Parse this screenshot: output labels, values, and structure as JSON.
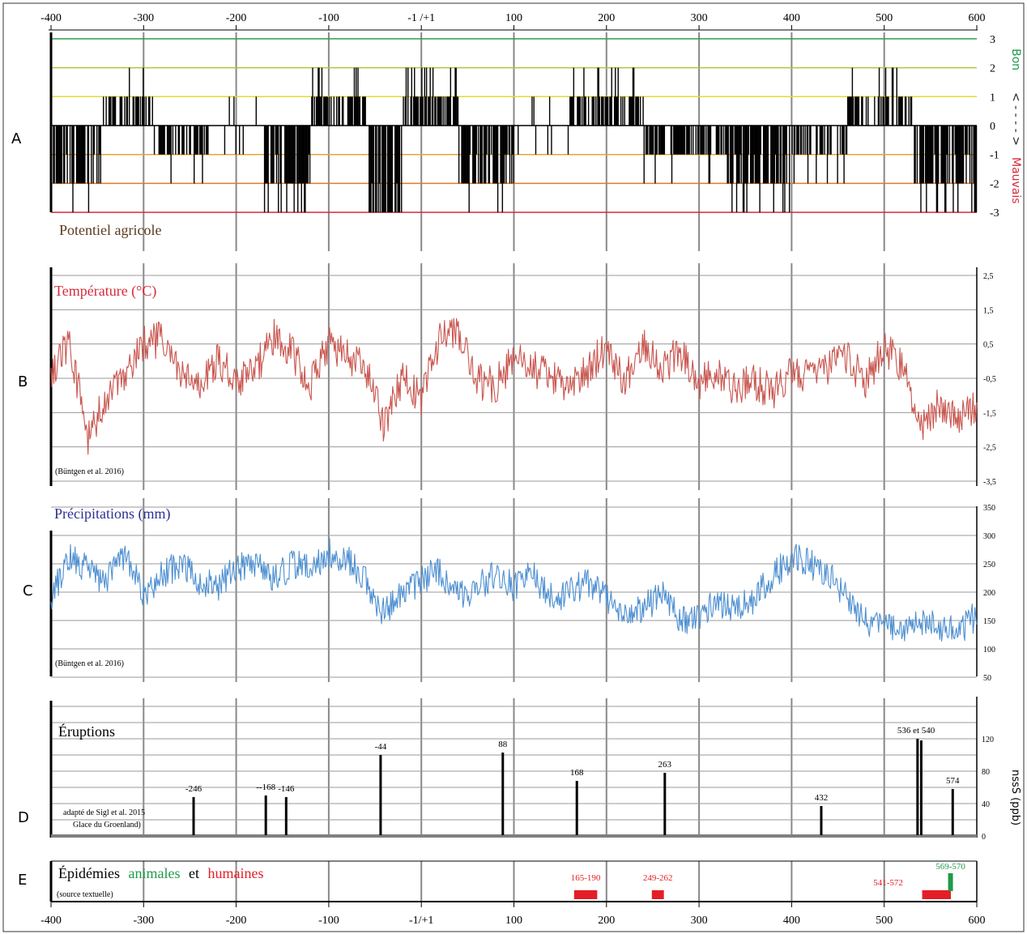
{
  "axis": {
    "xlim": [
      -400,
      600
    ],
    "top_ticks": [
      "-400",
      "-300",
      "-200",
      "-100",
      "-1 /+1",
      "100",
      "200",
      "300",
      "400",
      "500",
      "600"
    ],
    "bottom_ticks": [
      "-400",
      "-300",
      "-200",
      "-100",
      "-1/+1",
      "100",
      "200",
      "300",
      "400",
      "500",
      "600"
    ]
  },
  "panels": {
    "A": {
      "letter": "A",
      "title": "Potentiel agricole",
      "yticks": [
        "3",
        "2",
        "1",
        "0",
        "-1",
        "-2",
        "-3"
      ],
      "right_label_good": "Bon",
      "right_label_arrow": "< - - - - >",
      "right_label_bad": "Mauvais",
      "level_colors": [
        "#2e9e4b",
        "#a8c93a",
        "#e2d93a",
        "#000000",
        "#e8a33a",
        "#e07a2a",
        "#d62b3a"
      ]
    },
    "B": {
      "letter": "B",
      "title": "Température (°C)",
      "source": "(Büntgen et al. 2016)",
      "yticks": [
        "2,5",
        "1,5",
        "0,5",
        "-0,5",
        "-1,5",
        "-2,5",
        "-3,5"
      ],
      "color": "#c9564f"
    },
    "C": {
      "letter": "C",
      "title": "Précipitations (mm)",
      "source": "(Büntgen et al. 2016)",
      "yticks": [
        "350",
        "300",
        "250",
        "200",
        "150",
        "100",
        "50"
      ],
      "color": "#4d8fd1"
    },
    "D": {
      "letter": "D",
      "title": "Éruptions",
      "source_line1": "adapté de Sigl et al. 2015",
      "source_line2": "Glace du Groenland)",
      "ylabel": "nssS (ppb)",
      "yticks": [
        "120",
        "80",
        "40",
        "0"
      ]
    },
    "E": {
      "letter": "E",
      "title_prefix": "Épidémies",
      "title_green": "animales",
      "title_mid": "et",
      "title_red": "humaines",
      "source": "(source textuelle)"
    }
  },
  "chart_data": [
    {
      "type": "bar",
      "panel": "A",
      "title": "Potentiel agricole",
      "ylim": [
        -3,
        3
      ],
      "note": "annual agricultural potential index, integer levels -3 (Mauvais) to 3 (Bon)",
      "segments": [
        {
          "x0": -400,
          "x1": -345,
          "value": -2
        },
        {
          "x0": -345,
          "x1": -290,
          "value": 1
        },
        {
          "x0": -290,
          "x1": -230,
          "value": -1
        },
        {
          "x0": -230,
          "x1": -170,
          "value": 0
        },
        {
          "x0": -170,
          "x1": -120,
          "value": -2
        },
        {
          "x0": -120,
          "x1": -60,
          "value": 1
        },
        {
          "x0": -60,
          "x1": -20,
          "value": -3
        },
        {
          "x0": -20,
          "x1": 40,
          "value": 1
        },
        {
          "x0": 40,
          "x1": 100,
          "value": -2
        },
        {
          "x0": 100,
          "x1": 160,
          "value": 0
        },
        {
          "x0": 160,
          "x1": 240,
          "value": 1
        },
        {
          "x0": 240,
          "x1": 330,
          "value": -1
        },
        {
          "x0": 330,
          "x1": 400,
          "value": -2
        },
        {
          "x0": 400,
          "x1": 460,
          "value": -1
        },
        {
          "x0": 460,
          "x1": 530,
          "value": 1
        },
        {
          "x0": 530,
          "x1": 600,
          "value": -2
        }
      ]
    },
    {
      "type": "line",
      "panel": "B",
      "title": "Température (°C)",
      "ylim": [
        -3.5,
        2.5
      ],
      "x": [
        -400,
        -380,
        -360,
        -340,
        -320,
        -300,
        -280,
        -260,
        -240,
        -220,
        -200,
        -180,
        -160,
        -140,
        -120,
        -100,
        -80,
        -60,
        -40,
        -20,
        0,
        20,
        40,
        60,
        80,
        100,
        120,
        140,
        160,
        180,
        200,
        220,
        240,
        260,
        280,
        300,
        320,
        340,
        360,
        380,
        400,
        420,
        440,
        460,
        480,
        500,
        520,
        540,
        560,
        580,
        600
      ],
      "values": [
        -0.3,
        0.6,
        -2.3,
        -1.0,
        -0.6,
        0.6,
        0.6,
        -0.4,
        -0.8,
        0.1,
        -0.6,
        -0.3,
        0.7,
        0.3,
        -0.7,
        0.5,
        0.2,
        -0.3,
        -1.9,
        -0.4,
        -1.1,
        0.7,
        0.8,
        -0.6,
        -0.7,
        0.1,
        -0.2,
        -0.5,
        -0.8,
        -0.3,
        0.5,
        -0.6,
        0.6,
        -0.2,
        0.3,
        -0.6,
        -0.4,
        -0.8,
        -0.6,
        -0.9,
        -0.3,
        -0.4,
        -0.2,
        0.1,
        -0.6,
        0.4,
        -0.2,
        -1.9,
        -1.2,
        -1.6,
        -1.3
      ]
    },
    {
      "type": "line",
      "panel": "C",
      "title": "Précipitations (mm)",
      "ylim": [
        50,
        350
      ],
      "x": [
        -400,
        -380,
        -360,
        -340,
        -320,
        -300,
        -280,
        -260,
        -240,
        -220,
        -200,
        -180,
        -160,
        -140,
        -120,
        -100,
        -80,
        -60,
        -40,
        -20,
        0,
        20,
        40,
        60,
        80,
        100,
        120,
        140,
        160,
        180,
        200,
        220,
        240,
        260,
        280,
        300,
        320,
        340,
        360,
        380,
        400,
        420,
        440,
        460,
        480,
        500,
        520,
        540,
        560,
        580,
        600
      ],
      "values": [
        190,
        260,
        240,
        220,
        270,
        190,
        230,
        250,
        220,
        210,
        240,
        250,
        220,
        250,
        240,
        270,
        260,
        220,
        160,
        200,
        220,
        240,
        190,
        210,
        230,
        210,
        230,
        190,
        200,
        220,
        190,
        160,
        170,
        200,
        150,
        160,
        180,
        170,
        190,
        230,
        260,
        250,
        230,
        190,
        150,
        140,
        130,
        150,
        140,
        130,
        160
      ]
    },
    {
      "type": "bar",
      "panel": "D",
      "title": "Éruptions",
      "ylabel": "nssS (ppb)",
      "ylim": [
        0,
        160
      ],
      "x": [
        -246,
        -168,
        -146,
        -44,
        88,
        168,
        263,
        432,
        536,
        540,
        574
      ],
      "labels": [
        "-246",
        "--168",
        "-146",
        "-44",
        "88",
        "168",
        "263",
        "432",
        "536 et 540",
        "",
        "574"
      ],
      "values": [
        48,
        50,
        48,
        100,
        103,
        68,
        78,
        37,
        120,
        118,
        58
      ]
    },
    {
      "type": "bar",
      "panel": "E",
      "title": "Épidémies animales et humaines",
      "events": [
        {
          "label": "165-190",
          "start": 165,
          "end": 190,
          "kind": "humaines",
          "color": "#e41e26"
        },
        {
          "label": "249-262",
          "start": 249,
          "end": 262,
          "kind": "humaines",
          "color": "#e41e26"
        },
        {
          "label": "541-572",
          "start": 541,
          "end": 572,
          "kind": "humaines",
          "color": "#e41e26"
        },
        {
          "label": "569-570",
          "start": 569,
          "end": 570,
          "kind": "animales",
          "color": "#1f9a4a"
        }
      ]
    }
  ]
}
